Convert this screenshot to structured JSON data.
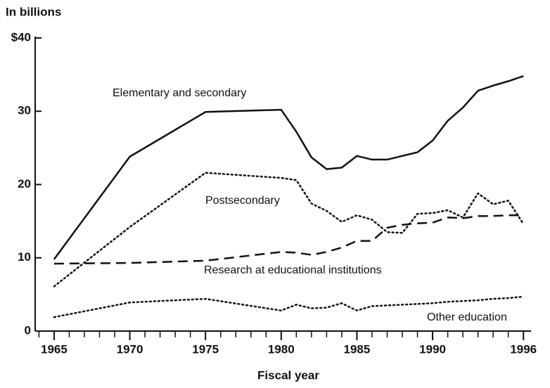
{
  "chart_data": {
    "type": "line",
    "y_label": "In billions",
    "x_label": "Fiscal year",
    "x": [
      1965,
      1970,
      1975,
      1980,
      1981,
      1982,
      1983,
      1984,
      1985,
      1986,
      1987,
      1988,
      1989,
      1990,
      1991,
      1992,
      1993,
      1994,
      1995,
      1996
    ],
    "series": [
      {
        "name": "Elementary and secondary",
        "color": "#111111",
        "style": "solid",
        "values": [
          9.8,
          23.8,
          29.9,
          30.2,
          27.2,
          23.7,
          22.1,
          22.3,
          23.9,
          23.4,
          23.4,
          23.9,
          24.4,
          26.0,
          28.7,
          30.5,
          32.8,
          33.5,
          34.1,
          34.8
        ]
      },
      {
        "name": "Postsecondary",
        "color": "#111111",
        "style": "dotted",
        "values": [
          6.1,
          14.2,
          21.6,
          20.9,
          20.6,
          17.4,
          16.4,
          14.9,
          15.8,
          15.2,
          13.5,
          13.4,
          16.0,
          16.1,
          16.5,
          15.5,
          18.8,
          17.3,
          17.8,
          14.6
        ]
      },
      {
        "name": "Research at educational institutions",
        "color": "#111111",
        "style": "dashed",
        "values": [
          9.2,
          9.3,
          9.6,
          10.8,
          10.7,
          10.4,
          10.8,
          11.4,
          12.3,
          12.3,
          14.1,
          14.5,
          14.7,
          14.8,
          15.5,
          15.4,
          15.7,
          15.7,
          15.8,
          15.8
        ]
      },
      {
        "name": "Other education",
        "color": "#111111",
        "style": "dotted",
        "values": [
          1.9,
          3.9,
          4.4,
          2.8,
          3.6,
          3.1,
          3.2,
          3.8,
          2.8,
          3.4,
          3.5,
          3.6,
          3.7,
          3.8,
          4.0,
          4.1,
          4.2,
          4.4,
          4.5,
          4.7
        ]
      }
    ],
    "xlim": [
      1963.75,
      1996.5
    ],
    "ylim": [
      0,
      40
    ],
    "xticks": [
      1965,
      1970,
      1975,
      1980,
      1985,
      1990,
      1996
    ],
    "yticks": [
      0,
      10,
      20,
      30,
      {
        "value": 40,
        "label": "$40"
      }
    ],
    "grid": false
  }
}
